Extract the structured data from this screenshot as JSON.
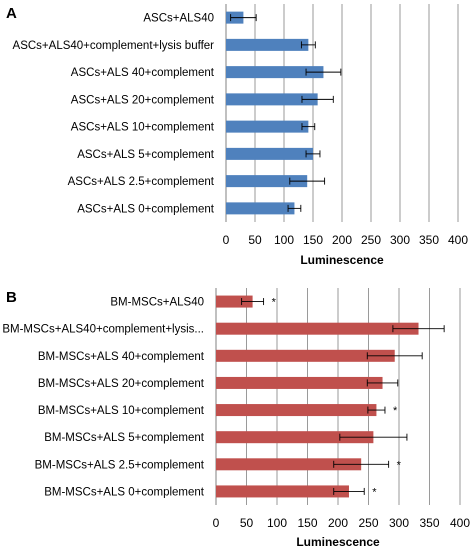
{
  "chart_data": [
    {
      "type": "bar",
      "orientation": "horizontal",
      "panel": "A",
      "categories": [
        "ASCs+ALS40",
        "ASCs+ALS40+complement+lysis buffer",
        "ASCs+ALS 40+complement",
        "ASCs+ALS 20+complement",
        "ASCs+ALS 10+complement",
        "ASCs+ALS 5+complement",
        "ASCs+ALS 2.5+complement",
        "ASCs+ALS 0+complement"
      ],
      "values": [
        30,
        142,
        168,
        158,
        142,
        150,
        140,
        118
      ],
      "errors": [
        22,
        12,
        30,
        27,
        11,
        12,
        30,
        11
      ],
      "significance": [
        "",
        "",
        "",
        "",
        "",
        "",
        "",
        ""
      ],
      "xlabel": "Luminescence",
      "xlim": [
        0,
        400
      ],
      "xticks": [
        0,
        50,
        100,
        150,
        200,
        250,
        300,
        350,
        400
      ],
      "bar_color": "#4f81bd",
      "grid": true
    },
    {
      "type": "bar",
      "orientation": "horizontal",
      "panel": "B",
      "categories": [
        "BM-MSCs+ALS40",
        "BM-MSCs+ALS40+complement+lysis...",
        "BM-MSCs+ALS 40+complement",
        "BM-MSCs+ALS 20+complement",
        "BM-MSCs+ALS 10+complement",
        "BM-MSCs+ALS 5+complement",
        "BM-MSCs+ALS 2.5+complement",
        "BM-MSCs+ALS 0+complement"
      ],
      "values": [
        60,
        332,
        293,
        273,
        263,
        258,
        238,
        218
      ],
      "errors": [
        18,
        42,
        45,
        25,
        14,
        55,
        45,
        25
      ],
      "significance": [
        "*",
        "",
        "",
        "",
        "*",
        "",
        "*",
        "*"
      ],
      "xlabel": "Luminescence",
      "xlim": [
        0,
        400
      ],
      "xticks": [
        0,
        50,
        100,
        150,
        200,
        250,
        300,
        350,
        400
      ],
      "bar_color": "#c0504d",
      "grid": true
    }
  ]
}
